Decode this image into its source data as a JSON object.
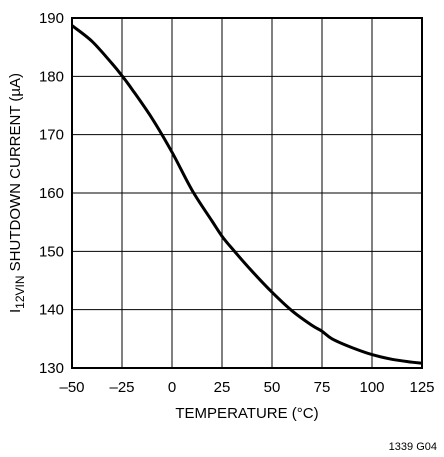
{
  "chart_data": {
    "type": "line",
    "title": "",
    "xlabel": "TEMPERATURE (°C)",
    "ylabel_main": "I",
    "ylabel_sub": "12VIN",
    "ylabel_rest": " SHUTDOWN CURRENT (µA)",
    "xlim": [
      -50,
      125
    ],
    "ylim": [
      130,
      190
    ],
    "xticks": [
      -50,
      -25,
      0,
      25,
      50,
      75,
      100,
      125
    ],
    "xtick_labels": [
      "–50",
      "–25",
      "0",
      "25",
      "50",
      "75",
      "100",
      "125"
    ],
    "yticks": [
      130,
      140,
      150,
      160,
      170,
      180,
      190
    ],
    "grid": true,
    "series": [
      {
        "x": [
          -50,
          -40,
          -30,
          -25,
          -20,
          -10,
          0,
          10,
          20,
          25,
          30,
          40,
          50,
          60,
          70,
          75,
          80,
          90,
          100,
          110,
          120,
          125
        ],
        "y": [
          188.7,
          186.0,
          182.2,
          180.1,
          177.8,
          172.8,
          167.0,
          160.5,
          155.2,
          152.6,
          150.5,
          146.6,
          143.0,
          139.8,
          137.3,
          136.3,
          135.0,
          133.5,
          132.3,
          131.5,
          131.0,
          130.8
        ]
      }
    ],
    "figure_id": "1339 G04"
  }
}
